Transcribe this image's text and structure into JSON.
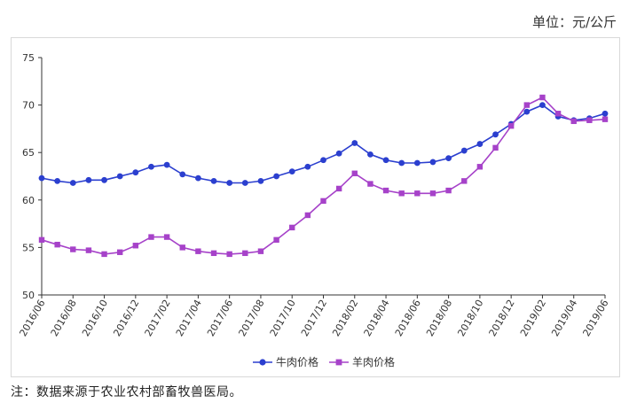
{
  "unit_label": "单位：元/公斤",
  "source_note": "注：数据来源于农业农村部畜牧兽医局。",
  "colors": {
    "beef": "#2b3fcf",
    "mutton": "#a642c9",
    "axis": "#333333"
  },
  "chart_data": {
    "type": "line",
    "title": "",
    "xlabel": "",
    "ylabel": "",
    "ylim": [
      50,
      75
    ],
    "yticks": [
      50,
      55,
      60,
      65,
      70,
      75
    ],
    "grid": false,
    "legend": "bottom",
    "categories": [
      "2016/06",
      "2016/07",
      "2016/08",
      "2016/09",
      "2016/10",
      "2016/11",
      "2016/12",
      "2017/01",
      "2017/02",
      "2017/03",
      "2017/04",
      "2017/05",
      "2017/06",
      "2017/07",
      "2017/08",
      "2017/09",
      "2017/10",
      "2017/11",
      "2017/12",
      "2018/01",
      "2018/02",
      "2018/03",
      "2018/04",
      "2018/05",
      "2018/06",
      "2018/07",
      "2018/08",
      "2018/09",
      "2018/10",
      "2018/11",
      "2018/12",
      "2019/01",
      "2019/02",
      "2019/03",
      "2019/04",
      "2019/05",
      "2019/06"
    ],
    "tick_labels": [
      "2016/06",
      "2016/08",
      "2016/10",
      "2016/12",
      "2017/02",
      "2017/04",
      "2017/06",
      "2017/08",
      "2017/10",
      "2017/12",
      "2018/02",
      "2018/04",
      "2018/06",
      "2018/08",
      "2018/10",
      "2018/12",
      "2019/02",
      "2019/04",
      "2019/06"
    ],
    "series": [
      {
        "name": "牛肉价格",
        "color": "#2b3fcf",
        "marker": "circle",
        "values": [
          62.3,
          62.0,
          61.8,
          62.1,
          62.1,
          62.5,
          62.9,
          63.5,
          63.7,
          62.7,
          62.3,
          62.0,
          61.8,
          61.8,
          62.0,
          62.5,
          63.0,
          63.5,
          64.2,
          64.9,
          66.0,
          64.8,
          64.2,
          63.9,
          63.9,
          64.0,
          64.4,
          65.2,
          65.9,
          66.9,
          68.0,
          69.3,
          70.0,
          68.8,
          68.4,
          68.6,
          69.1
        ]
      },
      {
        "name": "羊肉价格",
        "color": "#a642c9",
        "marker": "square",
        "values": [
          55.8,
          55.3,
          54.8,
          54.7,
          54.3,
          54.5,
          55.2,
          56.1,
          56.1,
          55.0,
          54.6,
          54.4,
          54.3,
          54.4,
          54.6,
          55.8,
          57.1,
          58.4,
          59.9,
          61.2,
          62.8,
          61.7,
          61.0,
          60.7,
          60.7,
          60.7,
          61.0,
          62.0,
          63.5,
          65.5,
          67.8,
          70.0,
          70.8,
          69.1,
          68.3,
          68.4,
          68.5
        ]
      }
    ]
  }
}
